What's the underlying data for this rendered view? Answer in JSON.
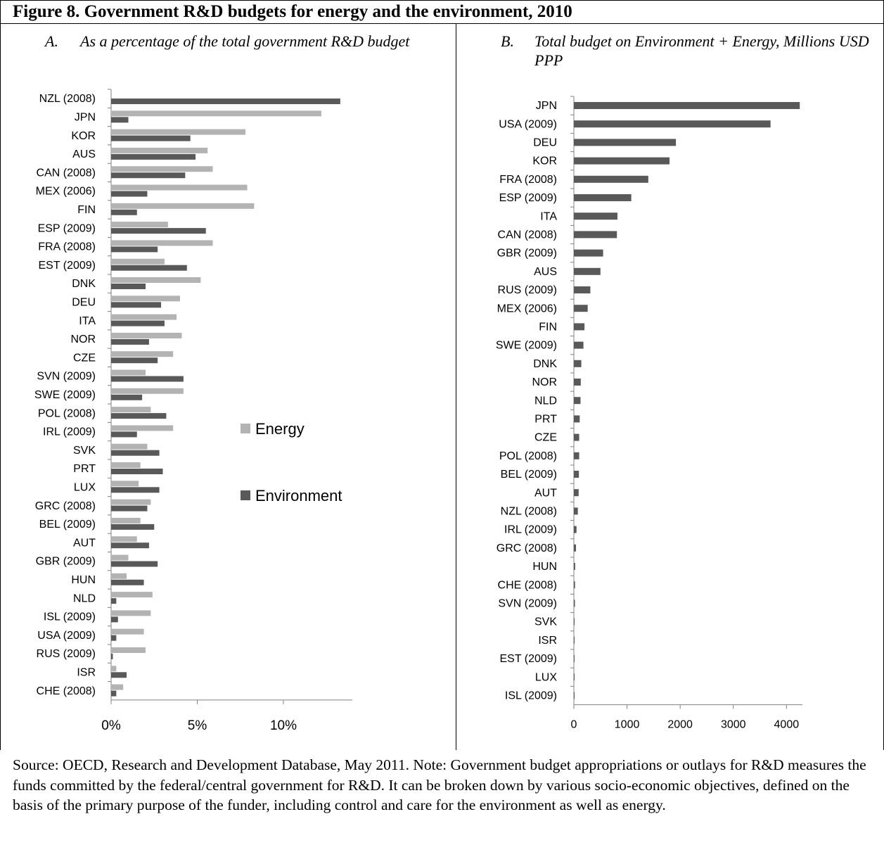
{
  "figure": {
    "title": "Figure 8. Government R&D budgets for energy and the environment, 2010",
    "panel_a": {
      "letter": "A.",
      "title": "As a percentage of the total government R&D budget"
    },
    "panel_b": {
      "letter": "B.",
      "title": "Total budget on Environment + Energy, Millions USD PPP"
    },
    "source_note": "Source: OECD, Research and Development Database, May 2011.  Note: Government budget appropriations or outlays for R&D measures the funds committed by the federal/central government for R&D. It can be broken down by various socio-economic objectives, defined on the basis of the primary purpose of the funder, including control and care for the environment as well as energy."
  },
  "colors": {
    "energy": "#b3b3b3",
    "environment": "#595959",
    "total": "#595959",
    "axis": "#808080"
  },
  "chart_data": [
    {
      "type": "bar",
      "orientation": "horizontal",
      "title": "As a percentage of the total government R&D budget",
      "categories": [
        "NZL (2008)",
        "JPN",
        "KOR",
        "AUS",
        "CAN (2008)",
        "MEX (2006)",
        "FIN",
        "ESP (2009)",
        "FRA (2008)",
        "EST (2009)",
        "DNK",
        "DEU",
        "ITA",
        "NOR",
        "CZE",
        "SVN (2009)",
        "SWE (2009)",
        "POL (2008)",
        "IRL (2009)",
        "SVK",
        "PRT",
        "LUX",
        "GRC (2008)",
        "BEL (2009)",
        "AUT",
        "GBR (2009)",
        "HUN",
        "NLD",
        "ISL (2009)",
        "USA (2009)",
        "RUS (2009)",
        "ISR",
        "CHE (2008)"
      ],
      "series": [
        {
          "name": "Energy",
          "values": [
            0.0,
            12.2,
            7.8,
            5.6,
            5.9,
            7.9,
            8.3,
            3.3,
            5.9,
            3.1,
            5.2,
            4.0,
            3.8,
            4.1,
            3.6,
            2.0,
            4.2,
            2.3,
            3.6,
            2.1,
            1.7,
            1.6,
            2.3,
            1.7,
            1.5,
            1.0,
            0.9,
            2.4,
            2.3,
            1.9,
            2.0,
            0.3,
            0.7
          ]
        },
        {
          "name": "Environment",
          "values": [
            13.3,
            1.0,
            4.6,
            4.9,
            4.3,
            2.1,
            1.5,
            5.5,
            2.7,
            4.4,
            2.0,
            2.9,
            3.1,
            2.2,
            2.7,
            4.2,
            1.8,
            3.2,
            1.5,
            2.8,
            3.0,
            2.8,
            2.1,
            2.5,
            2.2,
            2.7,
            1.9,
            0.3,
            0.4,
            0.3,
            0.1,
            0.9,
            0.3
          ]
        }
      ],
      "xlim": [
        0,
        14
      ],
      "xticks": [
        0,
        5,
        10
      ],
      "xtick_labels": [
        "0%",
        "5%",
        "10%"
      ],
      "legend": [
        "Energy",
        "Environment"
      ],
      "legend_placement": "right",
      "grid": false
    },
    {
      "type": "bar",
      "orientation": "horizontal",
      "title": "Total budget on Environment + Energy, Millions USD PPP",
      "categories": [
        "JPN",
        "USA (2009)",
        "DEU",
        "KOR",
        "FRA (2008)",
        "ESP (2009)",
        "ITA",
        "CAN (2008)",
        "GBR (2009)",
        "AUS",
        "RUS (2009)",
        "MEX (2006)",
        "FIN",
        "SWE (2009)",
        "DNK",
        "NOR",
        "NLD",
        "PRT",
        "CZE",
        "POL (2008)",
        "BEL (2009)",
        "AUT",
        "NZL (2008)",
        "IRL (2009)",
        "GRC (2008)",
        "HUN",
        "CHE (2008)",
        "SVN (2009)",
        "SVK",
        "ISR",
        "EST (2009)",
        "LUX",
        "ISL (2009)"
      ],
      "series": [
        {
          "values": [
            4250,
            3700,
            1920,
            1800,
            1400,
            1080,
            820,
            810,
            550,
            500,
            310,
            260,
            200,
            180,
            140,
            130,
            125,
            110,
            100,
            100,
            95,
            90,
            75,
            50,
            40,
            25,
            22,
            20,
            12,
            10,
            8,
            6,
            5
          ]
        }
      ],
      "xlim": [
        0,
        4300
      ],
      "xticks": [
        0,
        1000,
        2000,
        3000,
        4000
      ],
      "grid": false
    }
  ]
}
